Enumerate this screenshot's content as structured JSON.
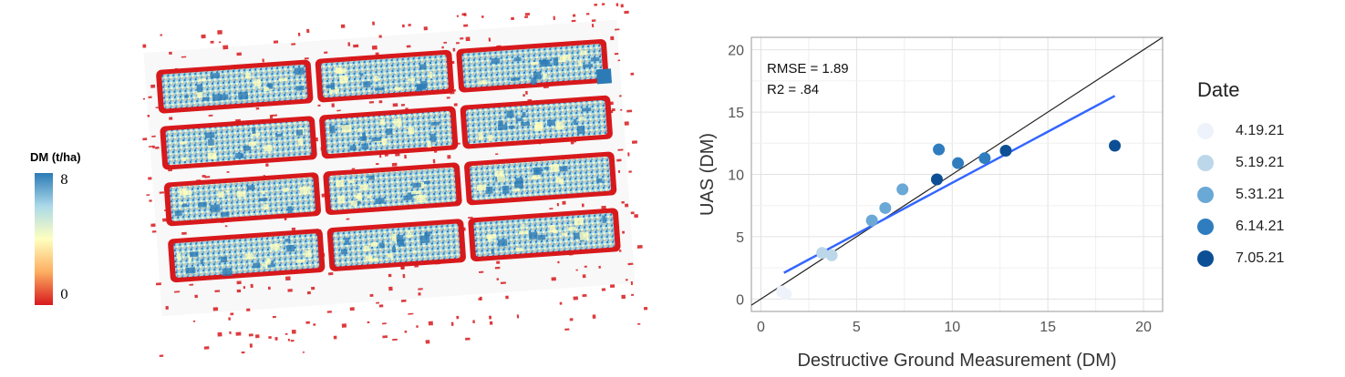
{
  "map": {
    "colorbar_title": "DM (t/ha)",
    "colorbar_max": "8",
    "colorbar_min": "0",
    "colors": [
      "#d7191c",
      "#fdae61",
      "#ffffbf",
      "#abd9e9",
      "#2c7bb6"
    ]
  },
  "chart_data": {
    "type": "scatter",
    "xlabel": "Destructive Ground Measurement (DM)",
    "ylabel": "UAS (DM)",
    "xlim": [
      -0.5,
      21
    ],
    "ylim": [
      -1,
      21
    ],
    "xticks": [
      0,
      5,
      10,
      15,
      20
    ],
    "yticks": [
      0,
      5,
      10,
      15,
      20
    ],
    "grid": true,
    "annotations": [
      "RMSE = 1.89",
      "R2 = .84"
    ],
    "legend": {
      "title": "Date",
      "placement": "right",
      "entries": [
        {
          "label": "4.19.21",
          "color": "#eef3fb"
        },
        {
          "label": "5.19.21",
          "color": "#bcd7ea"
        },
        {
          "label": "5.31.21",
          "color": "#6aa8d6"
        },
        {
          "label": "6.14.21",
          "color": "#2f7dbf"
        },
        {
          "label": "7.05.21",
          "color": "#0d4f95"
        }
      ]
    },
    "series": [
      {
        "name": "4.19.21",
        "points": [
          [
            1.1,
            0.6
          ],
          [
            1.3,
            0.4
          ]
        ]
      },
      {
        "name": "5.19.21",
        "points": [
          [
            3.2,
            3.7
          ],
          [
            3.7,
            3.5
          ]
        ]
      },
      {
        "name": "5.31.21",
        "points": [
          [
            5.8,
            6.3
          ],
          [
            6.5,
            7.3
          ],
          [
            7.4,
            8.8
          ]
        ]
      },
      {
        "name": "6.14.21",
        "points": [
          [
            9.3,
            12.0
          ],
          [
            10.3,
            10.9
          ],
          [
            11.7,
            11.3
          ]
        ]
      },
      {
        "name": "7.05.21",
        "points": [
          [
            9.2,
            9.6
          ],
          [
            12.8,
            11.9
          ],
          [
            18.5,
            12.3
          ]
        ]
      }
    ],
    "identity_line": {
      "from": [
        -0.5,
        -0.5
      ],
      "to": [
        21,
        21
      ],
      "color": "#222222"
    },
    "fit_line": {
      "from": [
        1.2,
        2.1
      ],
      "to": [
        18.5,
        16.3
      ],
      "color": "#3366ff"
    }
  }
}
